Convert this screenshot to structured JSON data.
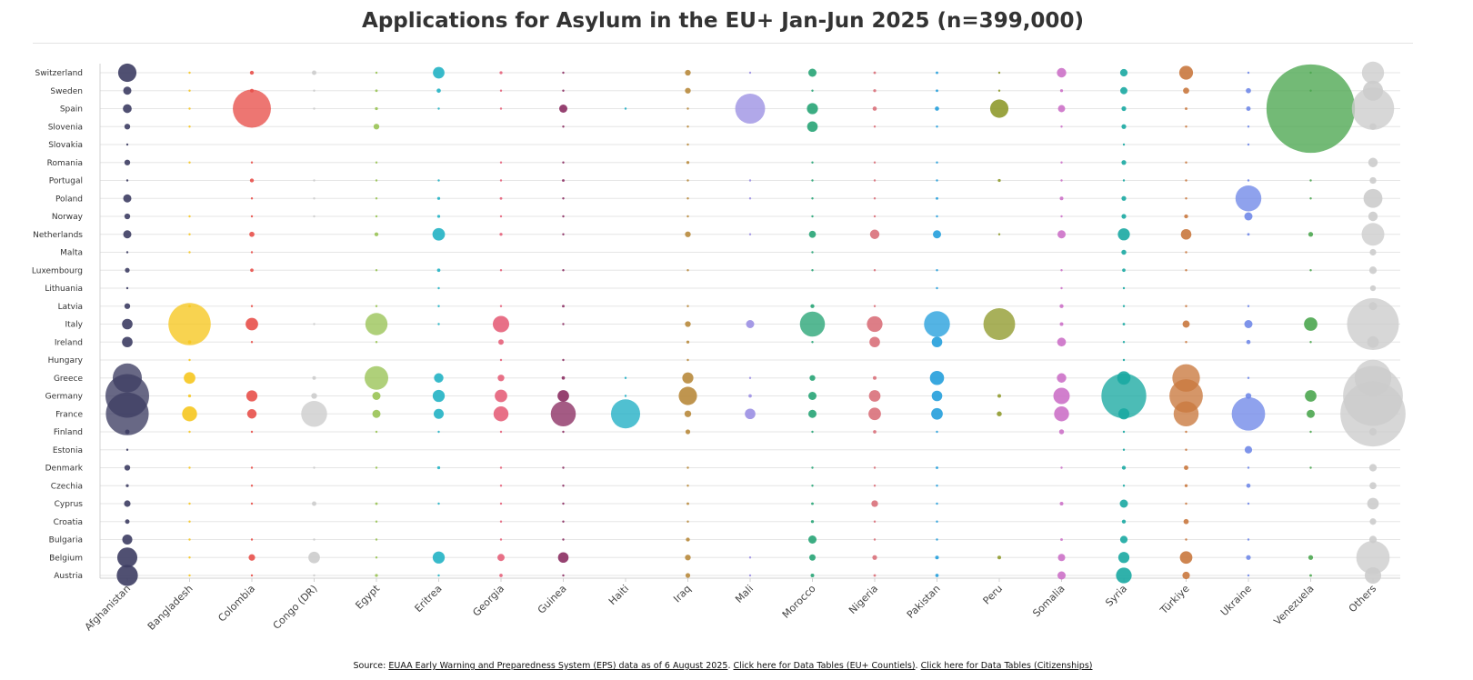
{
  "title": "Applications for Asylum in the EU+ Jan-Jun 2025 (n=399,000)",
  "source": {
    "prefix": "Source: ",
    "link1": "EUAA Early Warning and Preparedness System (EPS) data as of 6 August 2025",
    "sep1": ". ",
    "link2": "Click here for Data Tables (EU+ Countiels)",
    "sep2": ". ",
    "link3": "Click here for Data Tables (Citizenships)"
  },
  "chart_data": {
    "type": "scatter",
    "subtype": "bubble",
    "title": "Applications for Asylum in the EU+ Jan-Jun 2025 (n=399,000)",
    "x_categories": [
      "Afghanistan",
      "Bangladesh",
      "Colombia",
      "Congo (DR)",
      "Egypt",
      "Eritrea",
      "Georgia",
      "Guinea",
      "Haiti",
      "Iraq",
      "Mali",
      "Morocco",
      "Nigeria",
      "Pakistan",
      "Peru",
      "Somalia",
      "Syria",
      "Türkiye",
      "Ukraine",
      "Venezuela",
      "Others"
    ],
    "y_categories": [
      "Switzerland",
      "Sweden",
      "Spain",
      "Slovenia",
      "Slovakia",
      "Romania",
      "Portugal",
      "Poland",
      "Norway",
      "Netherlands",
      "Malta",
      "Luxembourg",
      "Lithuania",
      "Latvia",
      "Italy",
      "Ireland",
      "Hungary",
      "Greece",
      "Germany",
      "France",
      "Finland",
      "Estonia",
      "Denmark",
      "Czechia",
      "Cyprus",
      "Croatia",
      "Bulgaria",
      "Belgium",
      "Austria"
    ],
    "size_scale": "bubble area proportional to applications",
    "grid": true,
    "legend": "none",
    "colors": [
      "#3d3d63",
      "#f6c71f",
      "#e8504a",
      "#cccccc",
      "#99c354",
      "#22b2c4",
      "#e5607a",
      "#8b2d62",
      "#1faec4",
      "#b88a3c",
      "#9b8fe3",
      "#27a475",
      "#d9707a",
      "#249fdc",
      "#8f9a2c",
      "#cc71c8",
      "#1aa9a2",
      "#c9783e",
      "#7088e8",
      "#4ba64f",
      "#cccccc"
    ],
    "series": [
      {
        "name": "Afghanistan",
        "values": [
          1500,
          300,
          350,
          150,
          10,
          150,
          20,
          300,
          150,
          300,
          10,
          100,
          10,
          150,
          500,
          500,
          0,
          3800,
          8500,
          8200,
          90,
          10,
          150,
          40,
          190,
          90,
          450,
          1800,
          2000
        ]
      },
      {
        "name": "Bangladesh",
        "values": [
          10,
          20,
          15,
          20,
          0,
          10,
          0,
          0,
          10,
          20,
          10,
          0,
          0,
          30,
          8000,
          50,
          10,
          600,
          40,
          1000,
          10,
          0,
          10,
          0,
          10,
          20,
          10,
          10,
          20
        ]
      },
      {
        "name": "Colombia",
        "values": [
          70,
          60,
          6500,
          0,
          0,
          10,
          70,
          10,
          20,
          120,
          10,
          50,
          0,
          10,
          700,
          10,
          0,
          0,
          550,
          400,
          20,
          0,
          10,
          10,
          20,
          0,
          10,
          190,
          10
        ]
      },
      {
        "name": "Congo (DR)",
        "values": [
          90,
          20,
          10,
          0,
          0,
          0,
          10,
          10,
          10,
          0,
          0,
          0,
          0,
          0,
          10,
          0,
          0,
          60,
          150,
          3000,
          0,
          0,
          10,
          0,
          90,
          0,
          10,
          600,
          10
        ]
      },
      {
        "name": "Egypt",
        "values": [
          20,
          30,
          40,
          150,
          0,
          10,
          10,
          20,
          10,
          70,
          0,
          10,
          0,
          10,
          2200,
          20,
          0,
          2500,
          300,
          300,
          10,
          0,
          10,
          0,
          30,
          20,
          20,
          20,
          40
        ]
      },
      {
        "name": "Eritrea",
        "values": [
          600,
          80,
          10,
          0,
          0,
          0,
          10,
          40,
          40,
          700,
          0,
          50,
          10,
          10,
          20,
          0,
          0,
          400,
          650,
          450,
          10,
          0,
          40,
          0,
          10,
          0,
          0,
          650,
          10
        ]
      },
      {
        "name": "Georgia",
        "values": [
          40,
          20,
          20,
          0,
          0,
          10,
          10,
          30,
          10,
          40,
          0,
          10,
          0,
          10,
          1200,
          130,
          10,
          200,
          700,
          1000,
          20,
          0,
          10,
          10,
          10,
          10,
          10,
          230,
          50
        ]
      },
      {
        "name": "Guinea",
        "values": [
          20,
          10,
          300,
          10,
          0,
          10,
          30,
          10,
          10,
          20,
          0,
          10,
          0,
          30,
          20,
          0,
          10,
          50,
          600,
          2800,
          10,
          0,
          10,
          10,
          10,
          10,
          10,
          500,
          10
        ]
      },
      {
        "name": "Haiti",
        "values": [
          0,
          0,
          10,
          0,
          0,
          0,
          0,
          0,
          0,
          0,
          0,
          0,
          0,
          0,
          0,
          0,
          0,
          10,
          10,
          3800,
          0,
          0,
          0,
          0,
          0,
          0,
          0,
          0,
          0
        ]
      },
      {
        "name": "Iraq",
        "values": [
          150,
          150,
          10,
          10,
          10,
          40,
          10,
          20,
          10,
          150,
          0,
          10,
          0,
          10,
          150,
          40,
          10,
          550,
          1500,
          200,
          100,
          0,
          10,
          10,
          30,
          10,
          70,
          150,
          100
        ]
      },
      {
        "name": "Mali",
        "values": [
          10,
          0,
          4000,
          0,
          0,
          0,
          10,
          10,
          0,
          10,
          0,
          0,
          0,
          0,
          300,
          0,
          0,
          20,
          50,
          500,
          0,
          0,
          0,
          0,
          0,
          0,
          0,
          20,
          10
        ]
      },
      {
        "name": "Morocco",
        "values": [
          300,
          20,
          550,
          500,
          0,
          20,
          20,
          20,
          10,
          220,
          10,
          20,
          0,
          70,
          2800,
          20,
          0,
          150,
          300,
          300,
          10,
          0,
          10,
          10,
          30,
          40,
          300,
          180,
          60
        ]
      },
      {
        "name": "Nigeria",
        "values": [
          30,
          40,
          80,
          10,
          0,
          10,
          10,
          10,
          10,
          400,
          0,
          10,
          0,
          10,
          1100,
          500,
          0,
          60,
          600,
          700,
          50,
          0,
          10,
          10,
          200,
          10,
          20,
          100,
          30
        ]
      },
      {
        "name": "Pakistan",
        "values": [
          30,
          30,
          80,
          10,
          0,
          20,
          10,
          30,
          10,
          300,
          0,
          10,
          10,
          0,
          3000,
          500,
          0,
          900,
          500,
          600,
          20,
          0,
          30,
          10,
          20,
          10,
          10,
          60,
          50
        ]
      },
      {
        "name": "Peru",
        "values": [
          10,
          20,
          1500,
          0,
          0,
          0,
          40,
          0,
          0,
          10,
          0,
          0,
          0,
          0,
          4500,
          0,
          0,
          0,
          60,
          110,
          0,
          0,
          0,
          0,
          0,
          0,
          0,
          60,
          0
        ]
      },
      {
        "name": "Somalia",
        "values": [
          400,
          40,
          230,
          10,
          0,
          10,
          20,
          60,
          10,
          300,
          0,
          10,
          10,
          70,
          60,
          350,
          0,
          400,
          1200,
          1000,
          110,
          0,
          20,
          0,
          60,
          0,
          30,
          240,
          300
        ]
      },
      {
        "name": "Syria",
        "values": [
          250,
          230,
          100,
          100,
          20,
          100,
          10,
          100,
          100,
          650,
          110,
          50,
          20,
          20,
          30,
          20,
          10,
          800,
          9000,
          550,
          20,
          10,
          70,
          10,
          300,
          70,
          250,
          550,
          1100
        ]
      },
      {
        "name": "Türkiye",
        "values": [
          850,
          170,
          30,
          10,
          0,
          20,
          10,
          10,
          70,
          500,
          10,
          10,
          0,
          10,
          230,
          20,
          0,
          3400,
          5000,
          2800,
          20,
          10,
          90,
          40,
          20,
          120,
          10,
          700,
          250
        ]
      },
      {
        "name": "Ukraine",
        "values": [
          10,
          120,
          90,
          10,
          10,
          0,
          10,
          3000,
          300,
          30,
          0,
          0,
          0,
          20,
          300,
          80,
          0,
          20,
          150,
          5000,
          0,
          250,
          20,
          80,
          10,
          0,
          10,
          100,
          10
        ]
      },
      {
        "name": "Venezuela",
        "values": [
          20,
          20,
          35000,
          0,
          0,
          0,
          10,
          10,
          0,
          100,
          0,
          10,
          0,
          0,
          800,
          10,
          0,
          0,
          600,
          300,
          10,
          0,
          10,
          0,
          0,
          0,
          0,
          100,
          30
        ]
      },
      {
        "name": "Others",
        "values": [
          2200,
          1800,
          8000,
          200,
          0,
          400,
          200,
          1600,
          400,
          2300,
          190,
          250,
          150,
          300,
          12000,
          600,
          0,
          6000,
          16000,
          19000,
          250,
          0,
          250,
          220,
          600,
          190,
          250,
          5000,
          1200
        ]
      }
    ]
  }
}
